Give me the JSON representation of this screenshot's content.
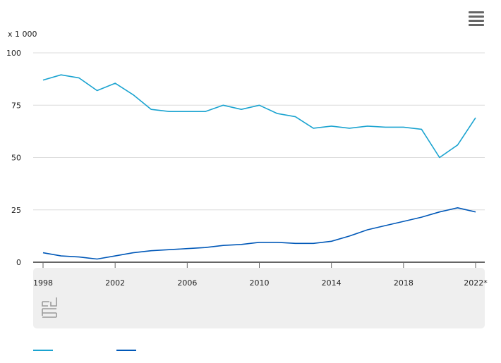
{
  "header": {
    "menu_icon": "hamburger-menu-icon"
  },
  "logo": {
    "name": "cbs-logo-icon",
    "text": "cbs"
  },
  "chart_data": {
    "type": "line",
    "unit_label": "x 1 000",
    "x": [
      1998,
      1999,
      2000,
      2001,
      2002,
      2003,
      2004,
      2005,
      2006,
      2007,
      2008,
      2009,
      2010,
      2011,
      2012,
      2013,
      2014,
      2015,
      2016,
      2017,
      2018,
      2019,
      2020,
      2021,
      2022
    ],
    "x_tick_labels": [
      "1998",
      "2002",
      "2006",
      "2010",
      "2014",
      "2018",
      "2022*"
    ],
    "x_tick_values": [
      1998,
      2002,
      2006,
      2010,
      2014,
      2018,
      2022
    ],
    "ylim": [
      0,
      100
    ],
    "y_ticks": [
      0,
      25,
      50,
      75,
      100
    ],
    "grid": true,
    "series": [
      {
        "name": "",
        "color": "#1aa3d0",
        "values": [
          87,
          89.5,
          88,
          82,
          85.5,
          80,
          73,
          72,
          72,
          72,
          75,
          73,
          75,
          71,
          69.5,
          64,
          65,
          64,
          65,
          64.5,
          64.5,
          63.5,
          50,
          56,
          69
        ]
      },
      {
        "name": "",
        "color": "#0058b8",
        "values": [
          4.5,
          3,
          2.5,
          1.5,
          3,
          4.5,
          5.5,
          6,
          6.5,
          7,
          8,
          8.5,
          9.5,
          9.5,
          9,
          9,
          10,
          12.5,
          15.5,
          17.5,
          19.5,
          21.5,
          24,
          26,
          24
        ]
      }
    ]
  },
  "legend": {
    "items": [
      {
        "label": "",
        "color": "#1aa3d0"
      },
      {
        "label": "",
        "color": "#0058b8"
      }
    ]
  }
}
